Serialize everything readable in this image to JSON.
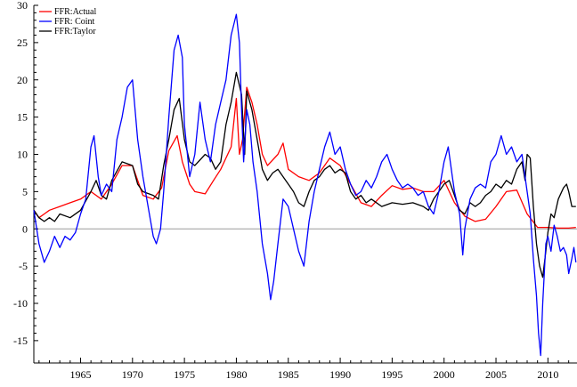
{
  "chart_data": {
    "type": "line",
    "title": "",
    "xlabel": "",
    "ylabel": "",
    "xlim": [
      1960.5,
      2012.8
    ],
    "ylim": [
      -18,
      30
    ],
    "x_ticks": [
      1965,
      1970,
      1975,
      1980,
      1985,
      1990,
      1995,
      2000,
      2005,
      2010
    ],
    "y_ticks": [
      -15,
      -10,
      -5,
      0,
      5,
      10,
      15,
      20,
      25,
      30
    ],
    "zero_line": true,
    "grid": false,
    "legend": {
      "position": "top-left"
    },
    "series": [
      {
        "name": "FFR:Actual",
        "color": "#ff0000",
        "points": [
          [
            1960.5,
            2.5
          ],
          [
            1961.0,
            1.5
          ],
          [
            1961.5,
            2.0
          ],
          [
            1962.0,
            2.5
          ],
          [
            1963.0,
            3.0
          ],
          [
            1964.0,
            3.5
          ],
          [
            1965.0,
            4.0
          ],
          [
            1966.0,
            5.0
          ],
          [
            1967.0,
            4.0
          ],
          [
            1968.0,
            6.0
          ],
          [
            1969.0,
            8.5
          ],
          [
            1970.0,
            8.5
          ],
          [
            1971.0,
            4.5
          ],
          [
            1972.0,
            4.0
          ],
          [
            1972.8,
            5.5
          ],
          [
            1973.5,
            10.5
          ],
          [
            1974.3,
            12.5
          ],
          [
            1974.8,
            9.0
          ],
          [
            1975.5,
            6.0
          ],
          [
            1976.0,
            5.0
          ],
          [
            1977.0,
            4.7
          ],
          [
            1977.8,
            6.5
          ],
          [
            1978.5,
            8.0
          ],
          [
            1979.5,
            11.0
          ],
          [
            1980.0,
            17.5
          ],
          [
            1980.3,
            10.0
          ],
          [
            1980.6,
            12.0
          ],
          [
            1981.0,
            19.0
          ],
          [
            1981.5,
            17.0
          ],
          [
            1982.0,
            14.0
          ],
          [
            1982.5,
            10.0
          ],
          [
            1983.0,
            8.5
          ],
          [
            1984.0,
            10.0
          ],
          [
            1984.5,
            11.5
          ],
          [
            1985.0,
            8.0
          ],
          [
            1986.0,
            7.0
          ],
          [
            1987.0,
            6.5
          ],
          [
            1988.0,
            7.5
          ],
          [
            1989.0,
            9.5
          ],
          [
            1990.0,
            8.5
          ],
          [
            1991.0,
            6.0
          ],
          [
            1992.0,
            3.5
          ],
          [
            1993.0,
            3.0
          ],
          [
            1994.0,
            4.5
          ],
          [
            1995.0,
            5.8
          ],
          [
            1996.0,
            5.3
          ],
          [
            1997.0,
            5.5
          ],
          [
            1998.0,
            5.0
          ],
          [
            1999.0,
            5.0
          ],
          [
            2000.0,
            6.5
          ],
          [
            2001.0,
            3.5
          ],
          [
            2002.0,
            1.7
          ],
          [
            2003.0,
            1.0
          ],
          [
            2004.0,
            1.3
          ],
          [
            2005.0,
            3.0
          ],
          [
            2006.0,
            5.0
          ],
          [
            2007.0,
            5.2
          ],
          [
            2008.0,
            2.0
          ],
          [
            2009.0,
            0.2
          ],
          [
            2010.0,
            0.2
          ],
          [
            2011.0,
            0.1
          ],
          [
            2012.0,
            0.1
          ],
          [
            2012.7,
            0.2
          ]
        ]
      },
      {
        "name": "FFR: Coint",
        "color": "#0000ff",
        "points": [
          [
            1960.5,
            2.5
          ],
          [
            1961.0,
            -2.0
          ],
          [
            1961.5,
            -4.5
          ],
          [
            1962.0,
            -3.0
          ],
          [
            1962.5,
            -1.0
          ],
          [
            1963.0,
            -2.5
          ],
          [
            1963.5,
            -1.0
          ],
          [
            1964.0,
            -1.5
          ],
          [
            1964.5,
            -0.5
          ],
          [
            1965.0,
            2.0
          ],
          [
            1965.5,
            4.0
          ],
          [
            1966.0,
            11.0
          ],
          [
            1966.3,
            12.5
          ],
          [
            1966.7,
            7.0
          ],
          [
            1967.0,
            4.5
          ],
          [
            1967.5,
            6.0
          ],
          [
            1968.0,
            5.0
          ],
          [
            1968.5,
            12.0
          ],
          [
            1969.0,
            15.0
          ],
          [
            1969.5,
            19.0
          ],
          [
            1970.0,
            20.0
          ],
          [
            1970.5,
            12.0
          ],
          [
            1971.0,
            7.0
          ],
          [
            1971.5,
            3.0
          ],
          [
            1972.0,
            -1.0
          ],
          [
            1972.3,
            -2.0
          ],
          [
            1972.7,
            0.0
          ],
          [
            1973.0,
            5.0
          ],
          [
            1973.5,
            15.0
          ],
          [
            1974.0,
            24.0
          ],
          [
            1974.4,
            26.0
          ],
          [
            1974.8,
            23.0
          ],
          [
            1975.0,
            14.0
          ],
          [
            1975.5,
            7.0
          ],
          [
            1976.0,
            10.0
          ],
          [
            1976.5,
            17.0
          ],
          [
            1977.0,
            12.0
          ],
          [
            1977.5,
            9.0
          ],
          [
            1978.0,
            14.0
          ],
          [
            1978.5,
            17.0
          ],
          [
            1979.0,
            20.0
          ],
          [
            1979.5,
            26.0
          ],
          [
            1980.0,
            28.8
          ],
          [
            1980.3,
            25.0
          ],
          [
            1980.5,
            16.0
          ],
          [
            1980.7,
            9.0
          ],
          [
            1981.0,
            16.0
          ],
          [
            1981.3,
            14.0
          ],
          [
            1981.6,
            9.0
          ],
          [
            1982.0,
            5.0
          ],
          [
            1982.5,
            -2.0
          ],
          [
            1983.0,
            -6.0
          ],
          [
            1983.3,
            -9.5
          ],
          [
            1983.6,
            -7.0
          ],
          [
            1984.0,
            -2.0
          ],
          [
            1984.5,
            4.0
          ],
          [
            1985.0,
            3.0
          ],
          [
            1985.5,
            0.0
          ],
          [
            1986.0,
            -3.0
          ],
          [
            1986.5,
            -5.0
          ],
          [
            1987.0,
            1.0
          ],
          [
            1987.5,
            5.0
          ],
          [
            1988.0,
            8.0
          ],
          [
            1988.5,
            11.0
          ],
          [
            1989.0,
            13.0
          ],
          [
            1989.5,
            10.0
          ],
          [
            1990.0,
            11.0
          ],
          [
            1990.5,
            8.0
          ],
          [
            1991.0,
            6.0
          ],
          [
            1991.5,
            4.5
          ],
          [
            1992.0,
            5.0
          ],
          [
            1992.5,
            6.5
          ],
          [
            1993.0,
            5.5
          ],
          [
            1993.5,
            7.0
          ],
          [
            1994.0,
            9.0
          ],
          [
            1994.5,
            10.0
          ],
          [
            1995.0,
            8.0
          ],
          [
            1995.5,
            6.5
          ],
          [
            1996.0,
            5.5
          ],
          [
            1996.5,
            6.0
          ],
          [
            1997.0,
            5.5
          ],
          [
            1997.5,
            4.5
          ],
          [
            1998.0,
            5.0
          ],
          [
            1998.5,
            3.0
          ],
          [
            1999.0,
            2.0
          ],
          [
            1999.5,
            5.0
          ],
          [
            2000.0,
            9.0
          ],
          [
            2000.4,
            11.0
          ],
          [
            2000.8,
            7.0
          ],
          [
            2001.0,
            5.0
          ],
          [
            2001.5,
            2.0
          ],
          [
            2001.8,
            -3.5
          ],
          [
            2002.0,
            0.0
          ],
          [
            2002.5,
            4.0
          ],
          [
            2003.0,
            5.5
          ],
          [
            2003.5,
            6.0
          ],
          [
            2004.0,
            5.5
          ],
          [
            2004.5,
            9.0
          ],
          [
            2005.0,
            10.0
          ],
          [
            2005.5,
            12.5
          ],
          [
            2006.0,
            10.0
          ],
          [
            2006.5,
            11.0
          ],
          [
            2007.0,
            9.0
          ],
          [
            2007.5,
            10.0
          ],
          [
            2008.0,
            5.0
          ],
          [
            2008.3,
            2.0
          ],
          [
            2008.6,
            -4.0
          ],
          [
            2008.9,
            -9.0
          ],
          [
            2009.1,
            -14.0
          ],
          [
            2009.3,
            -17.0
          ],
          [
            2009.5,
            -10.0
          ],
          [
            2009.8,
            -2.0
          ],
          [
            2010.0,
            -1.0
          ],
          [
            2010.3,
            -3.0
          ],
          [
            2010.6,
            0.5
          ],
          [
            2010.9,
            -1.0
          ],
          [
            2011.2,
            -3.0
          ],
          [
            2011.5,
            -2.5
          ],
          [
            2011.8,
            -3.5
          ],
          [
            2012.0,
            -6.0
          ],
          [
            2012.3,
            -4.0
          ],
          [
            2012.5,
            -2.5
          ],
          [
            2012.7,
            -4.5
          ]
        ]
      },
      {
        "name": "FFR:Taylor",
        "color": "#000000",
        "points": [
          [
            1960.5,
            2.5
          ],
          [
            1961.0,
            1.5
          ],
          [
            1961.5,
            1.0
          ],
          [
            1962.0,
            1.5
          ],
          [
            1962.5,
            1.0
          ],
          [
            1963.0,
            2.0
          ],
          [
            1964.0,
            1.5
          ],
          [
            1965.0,
            2.5
          ],
          [
            1966.0,
            5.0
          ],
          [
            1966.5,
            6.5
          ],
          [
            1967.0,
            4.5
          ],
          [
            1967.5,
            4.0
          ],
          [
            1968.0,
            6.5
          ],
          [
            1969.0,
            9.0
          ],
          [
            1970.0,
            8.5
          ],
          [
            1970.5,
            6.0
          ],
          [
            1971.0,
            5.0
          ],
          [
            1972.0,
            4.5
          ],
          [
            1972.5,
            4.0
          ],
          [
            1973.0,
            8.5
          ],
          [
            1973.5,
            12.0
          ],
          [
            1974.0,
            16.0
          ],
          [
            1974.5,
            17.5
          ],
          [
            1975.0,
            12.0
          ],
          [
            1975.5,
            9.0
          ],
          [
            1976.0,
            8.5
          ],
          [
            1977.0,
            10.0
          ],
          [
            1977.5,
            9.5
          ],
          [
            1978.0,
            8.0
          ],
          [
            1978.5,
            9.0
          ],
          [
            1979.0,
            14.0
          ],
          [
            1979.5,
            17.0
          ],
          [
            1980.0,
            21.0
          ],
          [
            1980.5,
            18.0
          ],
          [
            1980.8,
            10.0
          ],
          [
            1981.0,
            18.5
          ],
          [
            1981.5,
            16.0
          ],
          [
            1982.0,
            12.0
          ],
          [
            1982.5,
            8.0
          ],
          [
            1983.0,
            6.5
          ],
          [
            1983.5,
            7.5
          ],
          [
            1984.0,
            8.0
          ],
          [
            1984.5,
            7.0
          ],
          [
            1985.0,
            6.0
          ],
          [
            1985.5,
            5.0
          ],
          [
            1986.0,
            3.5
          ],
          [
            1986.5,
            3.0
          ],
          [
            1987.0,
            5.0
          ],
          [
            1987.5,
            6.5
          ],
          [
            1988.0,
            7.0
          ],
          [
            1988.5,
            8.0
          ],
          [
            1989.0,
            8.5
          ],
          [
            1989.5,
            7.5
          ],
          [
            1990.0,
            8.0
          ],
          [
            1990.5,
            7.5
          ],
          [
            1991.0,
            5.0
          ],
          [
            1991.5,
            4.0
          ],
          [
            1992.0,
            4.5
          ],
          [
            1992.5,
            3.5
          ],
          [
            1993.0,
            4.0
          ],
          [
            1994.0,
            3.0
          ],
          [
            1995.0,
            3.5
          ],
          [
            1996.0,
            3.3
          ],
          [
            1997.0,
            3.5
          ],
          [
            1998.0,
            3.0
          ],
          [
            1998.5,
            2.5
          ],
          [
            1999.0,
            4.0
          ],
          [
            2000.0,
            6.0
          ],
          [
            2000.5,
            6.5
          ],
          [
            2001.0,
            4.5
          ],
          [
            2001.5,
            2.5
          ],
          [
            2002.0,
            2.0
          ],
          [
            2002.5,
            3.5
          ],
          [
            2003.0,
            3.0
          ],
          [
            2003.5,
            3.5
          ],
          [
            2004.0,
            4.5
          ],
          [
            2004.5,
            5.0
          ],
          [
            2005.0,
            6.0
          ],
          [
            2005.5,
            5.5
          ],
          [
            2006.0,
            6.5
          ],
          [
            2006.5,
            6.0
          ],
          [
            2007.0,
            8.0
          ],
          [
            2007.5,
            9.0
          ],
          [
            2007.8,
            6.5
          ],
          [
            2008.0,
            10.0
          ],
          [
            2008.3,
            9.5
          ],
          [
            2008.6,
            3.0
          ],
          [
            2008.9,
            -2.0
          ],
          [
            2009.2,
            -5.0
          ],
          [
            2009.5,
            -6.5
          ],
          [
            2009.8,
            -3.0
          ],
          [
            2010.0,
            -0.5
          ],
          [
            2010.3,
            2.0
          ],
          [
            2010.6,
            1.5
          ],
          [
            2011.0,
            4.0
          ],
          [
            2011.5,
            5.5
          ],
          [
            2011.8,
            6.0
          ],
          [
            2012.0,
            5.0
          ],
          [
            2012.3,
            3.0
          ],
          [
            2012.7,
            3.0
          ]
        ]
      }
    ]
  }
}
